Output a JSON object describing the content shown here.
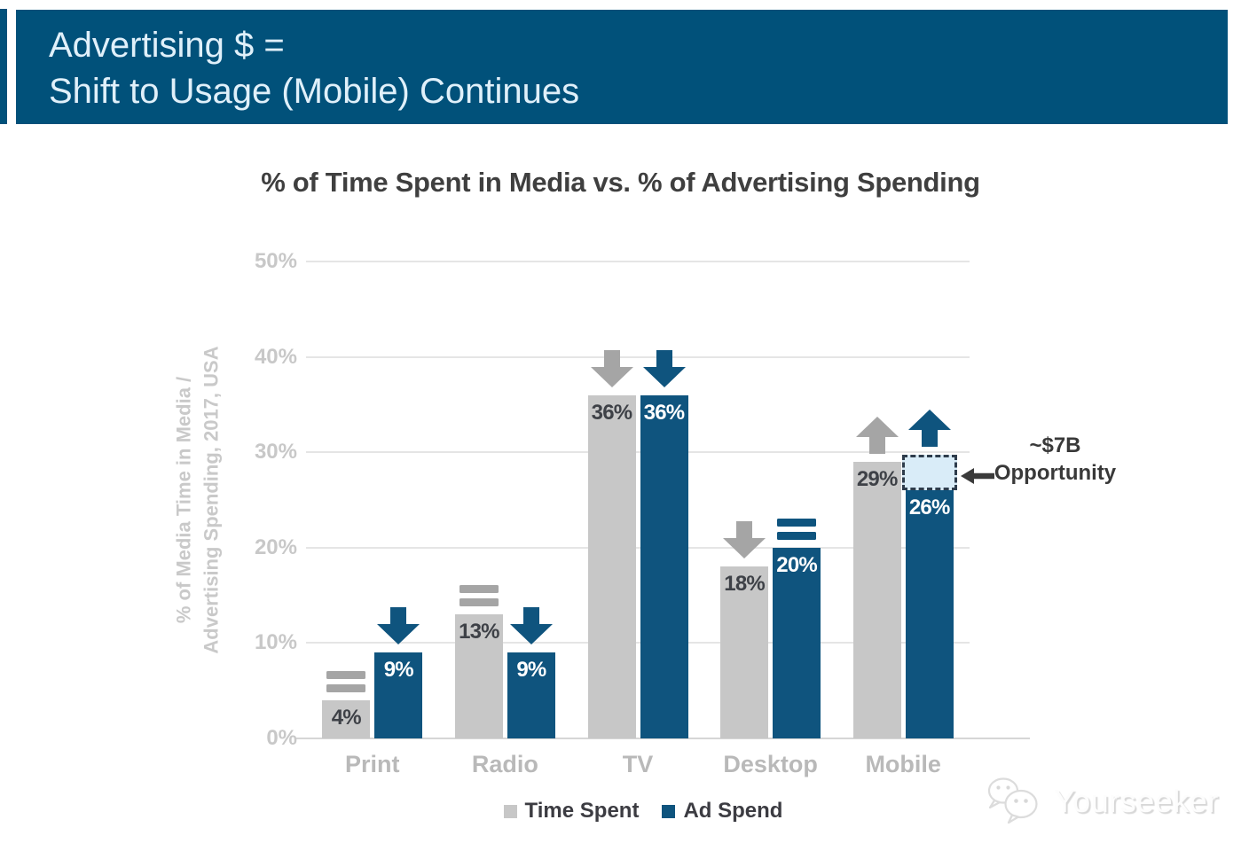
{
  "header": {
    "line1": "Advertising $ =",
    "line2": "Shift to Usage (Mobile) Continues"
  },
  "chart_data": {
    "type": "bar",
    "title": "% of Time Spent in Media vs. % of Advertising Spending",
    "ylabel_lines": [
      "% of Media Time in Media /",
      "Advertising Spending, 2017, USA"
    ],
    "categories": [
      "Print",
      "Radio",
      "TV",
      "Desktop",
      "Mobile"
    ],
    "series": [
      {
        "name": "Time Spent",
        "color": "#c7c7c7",
        "trend_color": "#a5a5a5",
        "values": [
          4,
          13,
          36,
          18,
          29
        ],
        "trends": [
          "flat",
          "flat",
          "down",
          "down",
          "up"
        ]
      },
      {
        "name": "Ad Spend",
        "color": "#0f547e",
        "trend_color": "#0f547e",
        "values": [
          9,
          9,
          36,
          20,
          26
        ],
        "trends": [
          "down",
          "down",
          "down",
          "flat",
          "up"
        ]
      }
    ],
    "value_suffix": "%",
    "ylim": [
      0,
      50
    ],
    "yticks": [
      {
        "label": "0%",
        "value": 0
      },
      {
        "label": "10%",
        "value": 10
      },
      {
        "label": "20%",
        "value": 20
      },
      {
        "label": "30%",
        "value": 30
      },
      {
        "label": "40%",
        "value": 40
      },
      {
        "label": "50%",
        "value": 50
      }
    ],
    "grid": "horizontal",
    "legend_position": "bottom",
    "annotation": {
      "line1": "~$7B",
      "line2": "Opportunity",
      "box_from": 26,
      "box_to": 29.7,
      "category": "Mobile",
      "series": "Ad Spend"
    }
  },
  "legend": {
    "items": [
      {
        "label": "Time Spent",
        "color": "#c7c7c7"
      },
      {
        "label": "Ad Spend",
        "color": "#0f547e"
      }
    ]
  },
  "watermark": {
    "text": "Yourseeker"
  },
  "colors": {
    "banner": "#01517a",
    "bar_blue": "#0f547e",
    "bar_gray": "#c7c7c7",
    "opportunity_fill": "#d9ecf8"
  }
}
